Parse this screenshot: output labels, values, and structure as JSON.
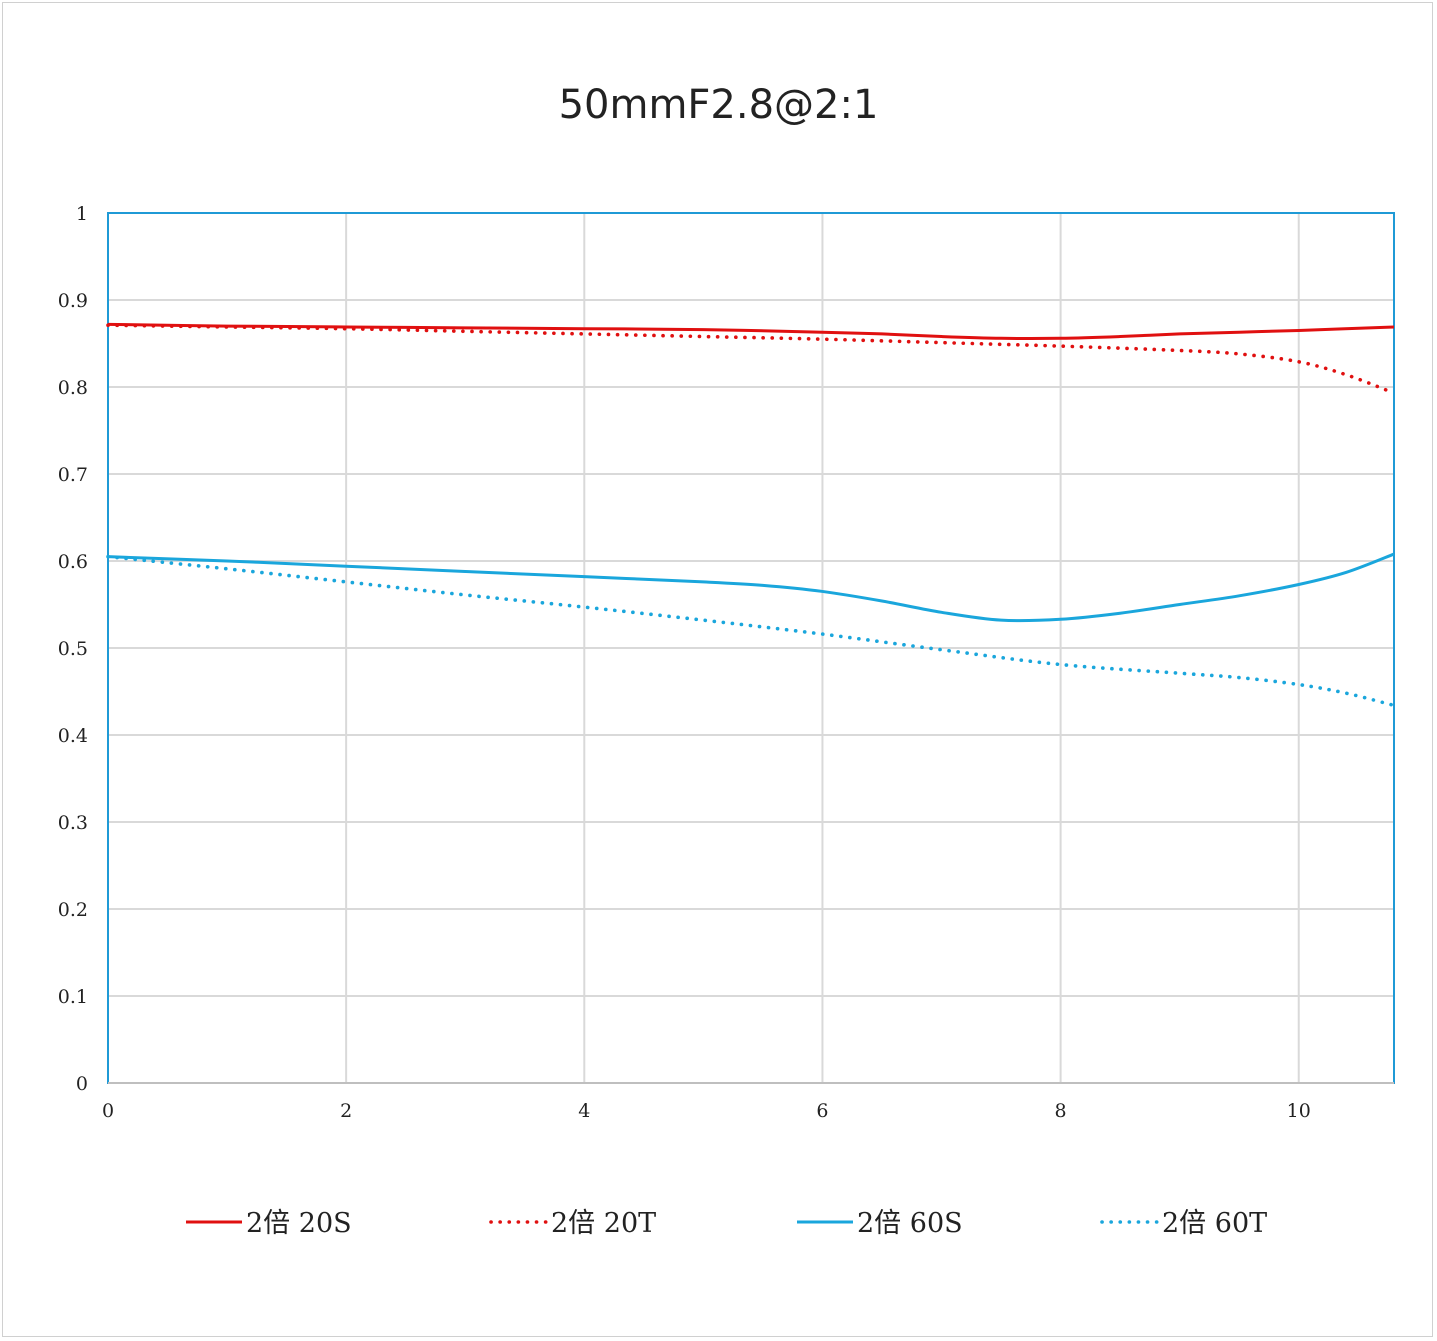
{
  "chart_data": {
    "type": "line",
    "title": "50mmF2.8@2:1",
    "xlabel": "",
    "ylabel": "",
    "xlim": [
      0,
      10.8
    ],
    "ylim": [
      0,
      1
    ],
    "x_ticks": [
      "0",
      "2",
      "4",
      "6",
      "8",
      "10"
    ],
    "y_ticks": [
      "0",
      "0.1",
      "0.2",
      "0.3",
      "0.4",
      "0.5",
      "0.6",
      "0.7",
      "0.8",
      "0.9",
      "1"
    ],
    "grid": true,
    "legend_position": "bottom",
    "series": [
      {
        "name": "2倍 20S",
        "color": "#e01010",
        "style": "solid",
        "x": [
          0,
          1,
          2,
          3,
          4,
          5,
          6,
          6.5,
          7,
          7.5,
          8,
          8.5,
          9,
          9.5,
          10,
          10.8
        ],
        "y": [
          0.872,
          0.87,
          0.869,
          0.868,
          0.867,
          0.866,
          0.863,
          0.861,
          0.858,
          0.856,
          0.856,
          0.858,
          0.861,
          0.863,
          0.865,
          0.869
        ]
      },
      {
        "name": "2倍 20T",
        "color": "#e01010",
        "style": "dotted",
        "x": [
          0,
          1,
          2,
          3,
          4,
          5,
          6,
          7,
          8,
          9,
          9.5,
          10,
          10.4,
          10.8
        ],
        "y": [
          0.871,
          0.869,
          0.867,
          0.864,
          0.861,
          0.858,
          0.855,
          0.851,
          0.847,
          0.842,
          0.838,
          0.829,
          0.814,
          0.793
        ]
      },
      {
        "name": "2倍 60S",
        "color": "#1aa6dc",
        "style": "solid",
        "x": [
          0,
          1,
          2,
          3,
          4,
          5,
          5.5,
          6,
          6.5,
          7,
          7.5,
          8,
          8.5,
          9,
          9.5,
          10,
          10.4,
          10.8
        ],
        "y": [
          0.605,
          0.6,
          0.594,
          0.588,
          0.582,
          0.576,
          0.572,
          0.565,
          0.554,
          0.541,
          0.532,
          0.533,
          0.54,
          0.55,
          0.56,
          0.573,
          0.587,
          0.608
        ]
      },
      {
        "name": "2倍 60T",
        "color": "#1aa6dc",
        "style": "dotted",
        "x": [
          0,
          1,
          2,
          3,
          4,
          5,
          6,
          7,
          8,
          9,
          9.5,
          10,
          10.4,
          10.8
        ],
        "y": [
          0.605,
          0.591,
          0.576,
          0.561,
          0.547,
          0.532,
          0.516,
          0.498,
          0.481,
          0.471,
          0.466,
          0.458,
          0.448,
          0.434
        ]
      }
    ]
  }
}
